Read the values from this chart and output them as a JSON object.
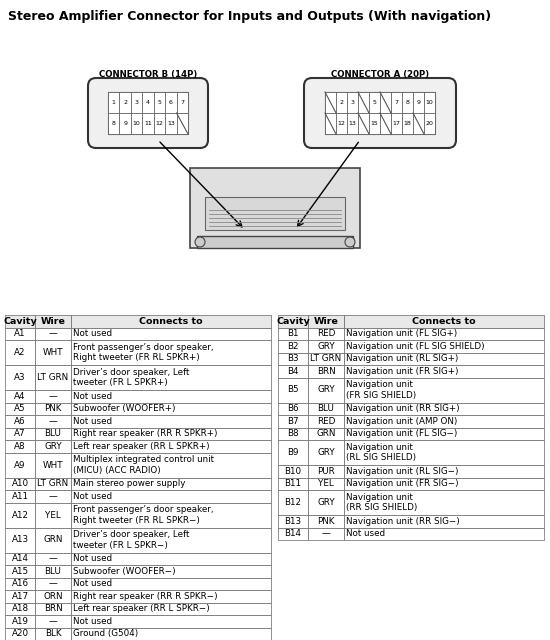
{
  "title": "Stereo Amplifier Connector for Inputs and Outputs (With navigation)",
  "connector_b_label": "CONNECTOR B (14P)",
  "connector_a_label": "CONNECTOR A (20P)",
  "table_a_headers": [
    "Cavity",
    "Wire",
    "Connects to"
  ],
  "table_a_rows": [
    [
      "A1",
      "—",
      "Not used"
    ],
    [
      "A2",
      "WHT",
      "Front passenger’s door speaker,\nRight tweeter (FR RL SPKR+)"
    ],
    [
      "A3",
      "LT GRN",
      "Driver’s door speaker, Left\ntweeter (FR L SPKR+)"
    ],
    [
      "A4",
      "—",
      "Not used"
    ],
    [
      "A5",
      "PNK",
      "Subwoofer (WOOFER+)"
    ],
    [
      "A6",
      "—",
      "Not used"
    ],
    [
      "A7",
      "BLU",
      "Right rear speaker (RR R SPKR+)"
    ],
    [
      "A8",
      "GRY",
      "Left rear speaker (RR L SPKR+)"
    ],
    [
      "A9",
      "WHT",
      "Multiplex integrated control unit\n(MICU) (ACC RADIO)"
    ],
    [
      "A10",
      "LT GRN",
      "Main stereo power supply"
    ],
    [
      "A11",
      "—",
      "Not used"
    ],
    [
      "A12",
      "YEL",
      "Front passenger’s door speaker,\nRight tweeter (FR RL SPKR−)"
    ],
    [
      "A13",
      "GRN",
      "Driver’s door speaker, Left\ntweeter (FR L SPKR−)"
    ],
    [
      "A14",
      "—",
      "Not used"
    ],
    [
      "A15",
      "BLU",
      "Subwoofer (WOOFER−)"
    ],
    [
      "A16",
      "—",
      "Not used"
    ],
    [
      "A17",
      "ORN",
      "Right rear speaker (RR R SPKR−)"
    ],
    [
      "A18",
      "BRN",
      "Left rear speaker (RR L SPKR−)"
    ],
    [
      "A19",
      "—",
      "Not used"
    ],
    [
      "A20",
      "BLK",
      "Ground (G504)"
    ]
  ],
  "table_b_headers": [
    "Cavity",
    "Wire",
    "Connects to"
  ],
  "table_b_rows": [
    [
      "B1",
      "RED",
      "Navigation unit (FL SIG+)"
    ],
    [
      "B2",
      "GRY",
      "Navigation unit (FL SIG SHIELD)"
    ],
    [
      "B3",
      "LT GRN",
      "Navigation unit (RL SIG+)"
    ],
    [
      "B4",
      "BRN",
      "Navigation unit (FR SIG+)"
    ],
    [
      "B5",
      "GRY",
      "Navigation unit\n(FR SIG SHIELD)"
    ],
    [
      "B6",
      "BLU",
      "Navigation unit (RR SIG+)"
    ],
    [
      "B7",
      "RED",
      "Navigation unit (AMP ON)"
    ],
    [
      "B8",
      "GRN",
      "Navigation unit (FL SIG−)"
    ],
    [
      "B9",
      "GRY",
      "Navigation unit\n(RL SIG SHIELD)"
    ],
    [
      "B10",
      "PUR",
      "Navigation unit (RL SIG−)"
    ],
    [
      "B11",
      "YEL",
      "Navigation unit (FR SIG−)"
    ],
    [
      "B12",
      "GRY",
      "Navigation unit\n(RR SIG SHIELD)"
    ],
    [
      "B13",
      "PNK",
      "Navigation unit (RR SIG−)"
    ],
    [
      "B14",
      "—",
      "Not used"
    ]
  ],
  "bg_color": "#ffffff",
  "table_bg": "#ffffff",
  "header_bg": "#e8e8e8",
  "border_color": "#555555",
  "title_fontsize": 9.0,
  "table_fontsize": 6.3,
  "header_fontsize": 6.8
}
